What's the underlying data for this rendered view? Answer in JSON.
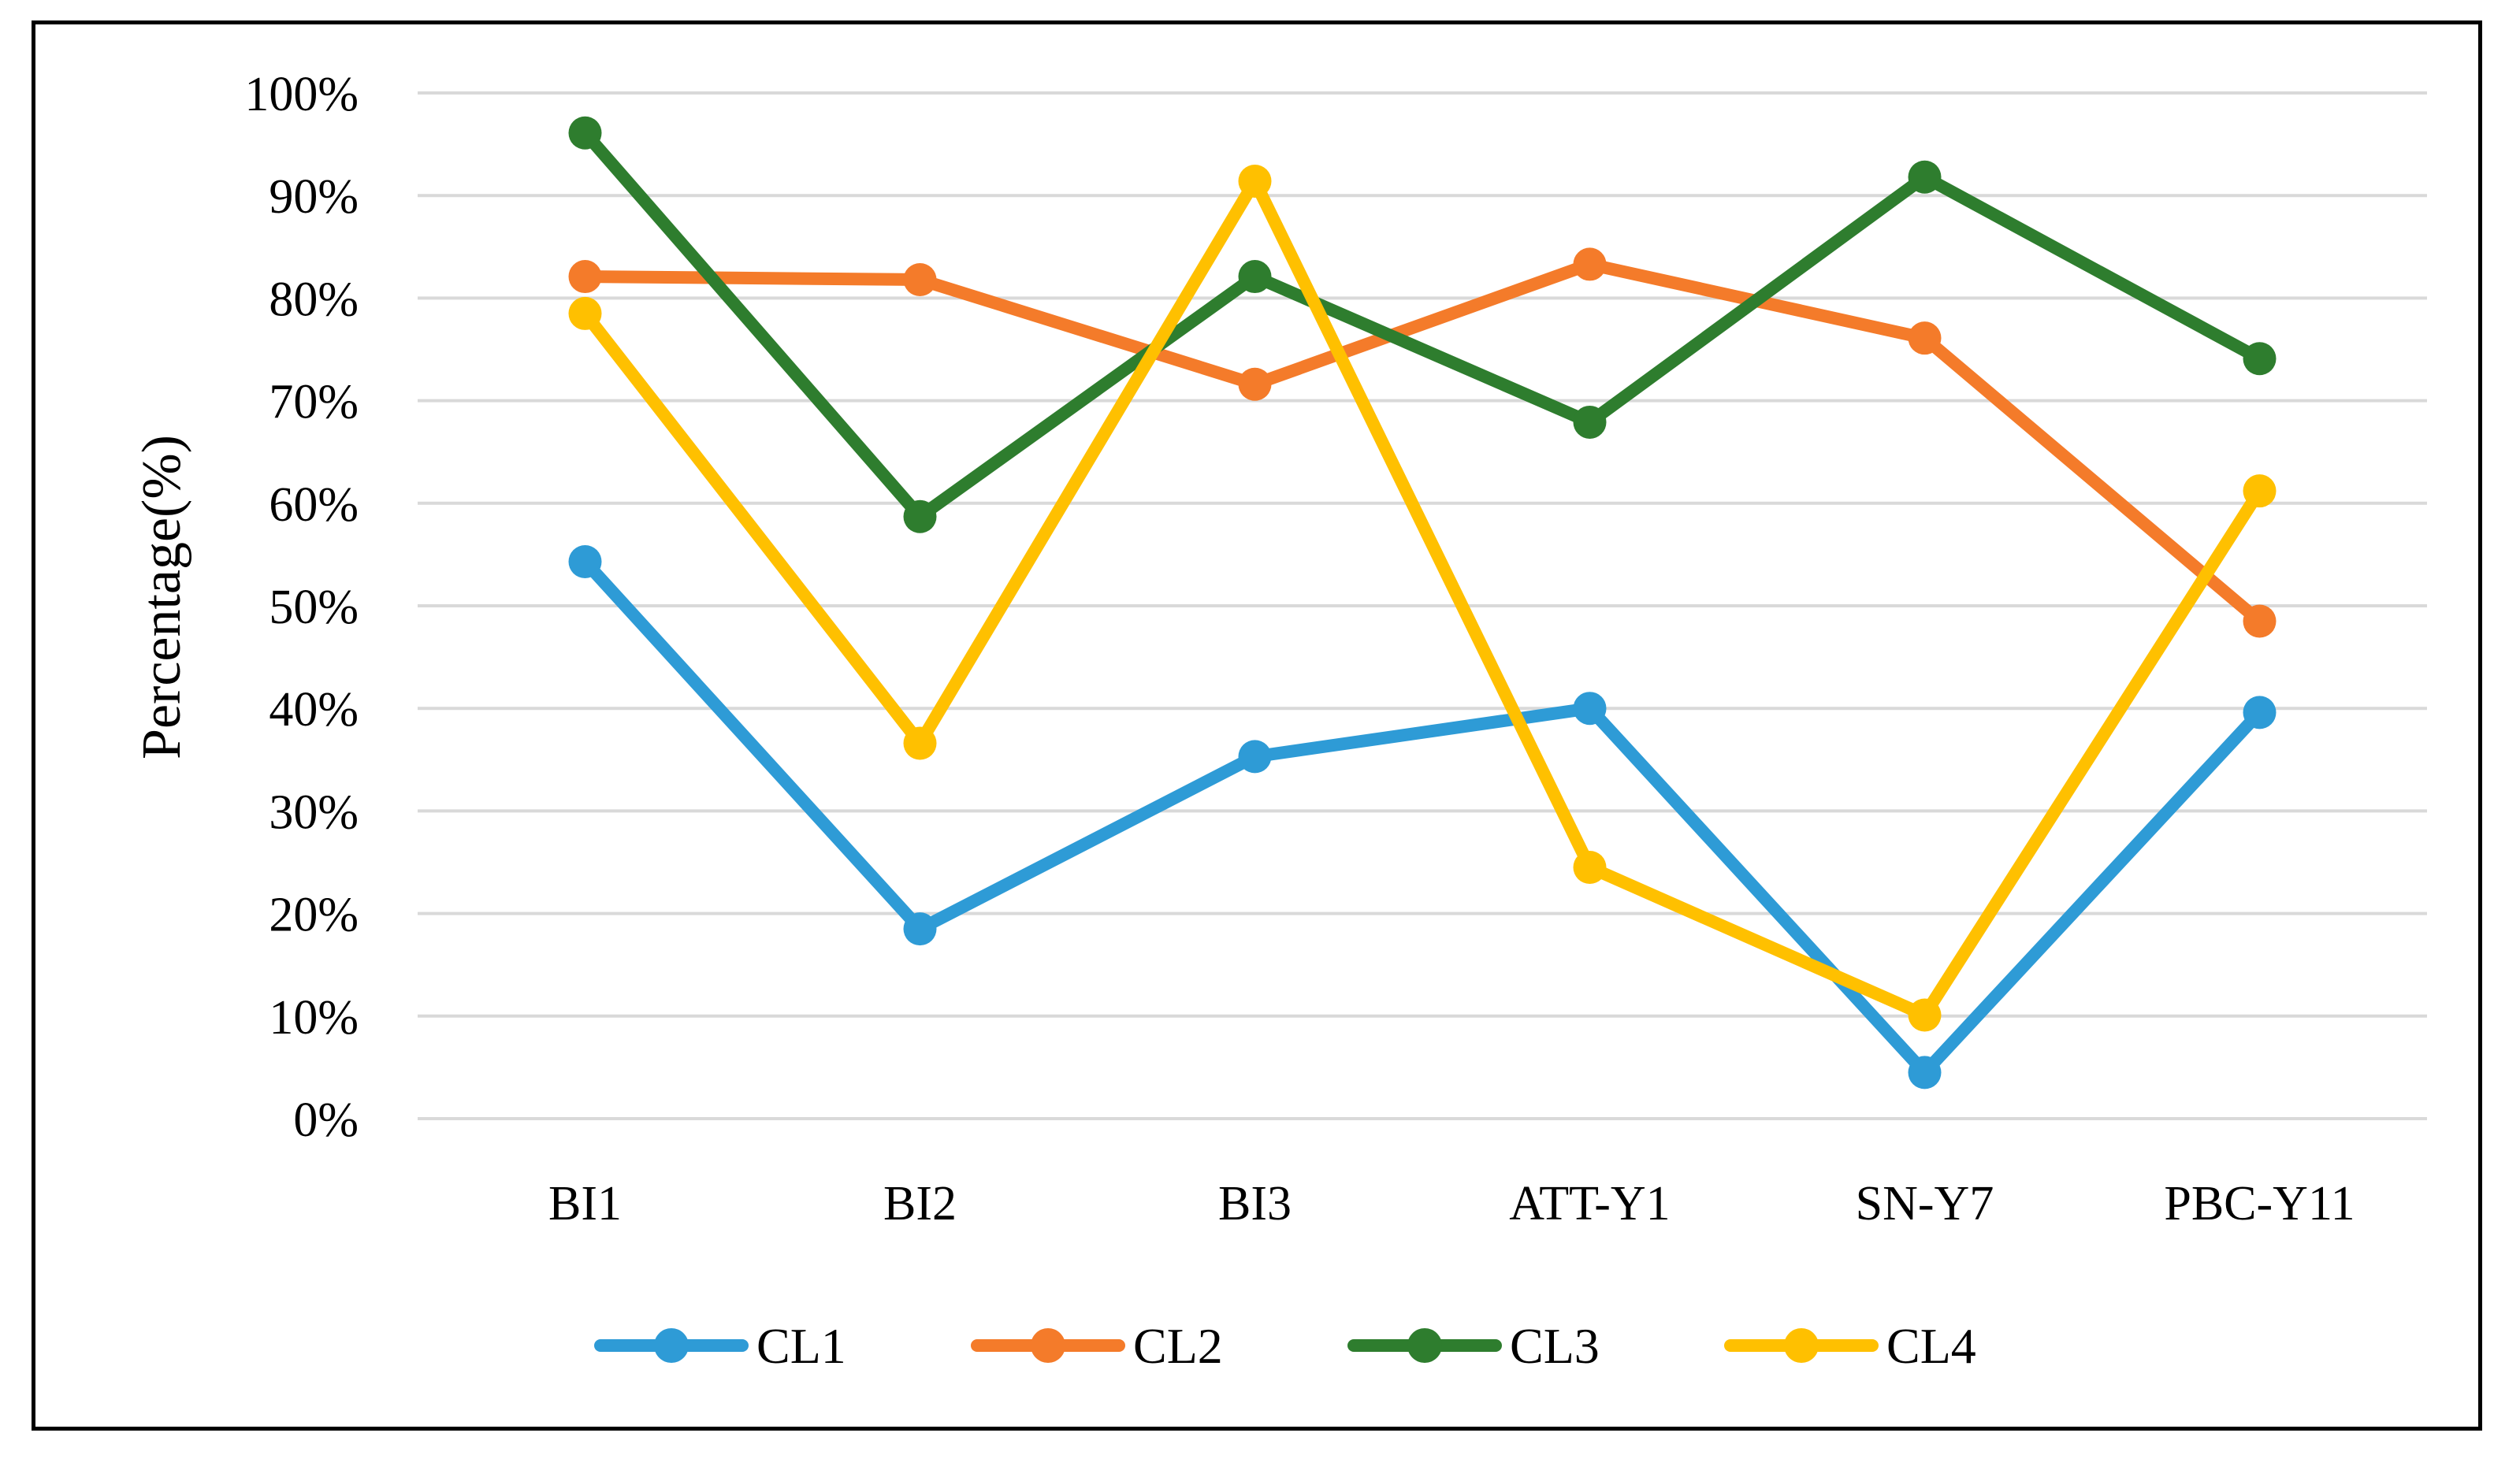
{
  "chart_data": {
    "type": "line",
    "title": "",
    "xlabel": "",
    "ylabel": "Percentage(%)",
    "ylim": [
      0,
      100
    ],
    "yticks": [
      0,
      10,
      20,
      30,
      40,
      50,
      60,
      70,
      80,
      90,
      100
    ],
    "ytick_labels": [
      "0%",
      "10%",
      "20%",
      "30%",
      "40%",
      "50%",
      "60%",
      "70%",
      "80%",
      "90%",
      "100%"
    ],
    "categories": [
      "BI1",
      "BI2",
      "BI3",
      "ATT-Y1",
      "SN-Y7",
      "PBC-Y11"
    ],
    "grid": true,
    "legend_position": "bottom",
    "series": [
      {
        "name": "CL1",
        "color": "#2E9BD6",
        "values": [
          54.3,
          18.5,
          35.3,
          40.0,
          4.5,
          39.6
        ]
      },
      {
        "name": "CL2",
        "color": "#F47B2A",
        "values": [
          82.1,
          81.8,
          71.6,
          83.3,
          76.1,
          48.5
        ]
      },
      {
        "name": "CL3",
        "color": "#2E7D2E",
        "values": [
          96.1,
          58.7,
          82.1,
          67.9,
          91.8,
          74.1
        ]
      },
      {
        "name": "CL4",
        "color": "#FFC000",
        "values": [
          78.5,
          36.6,
          91.4,
          24.5,
          10.1,
          61.2
        ]
      }
    ]
  }
}
